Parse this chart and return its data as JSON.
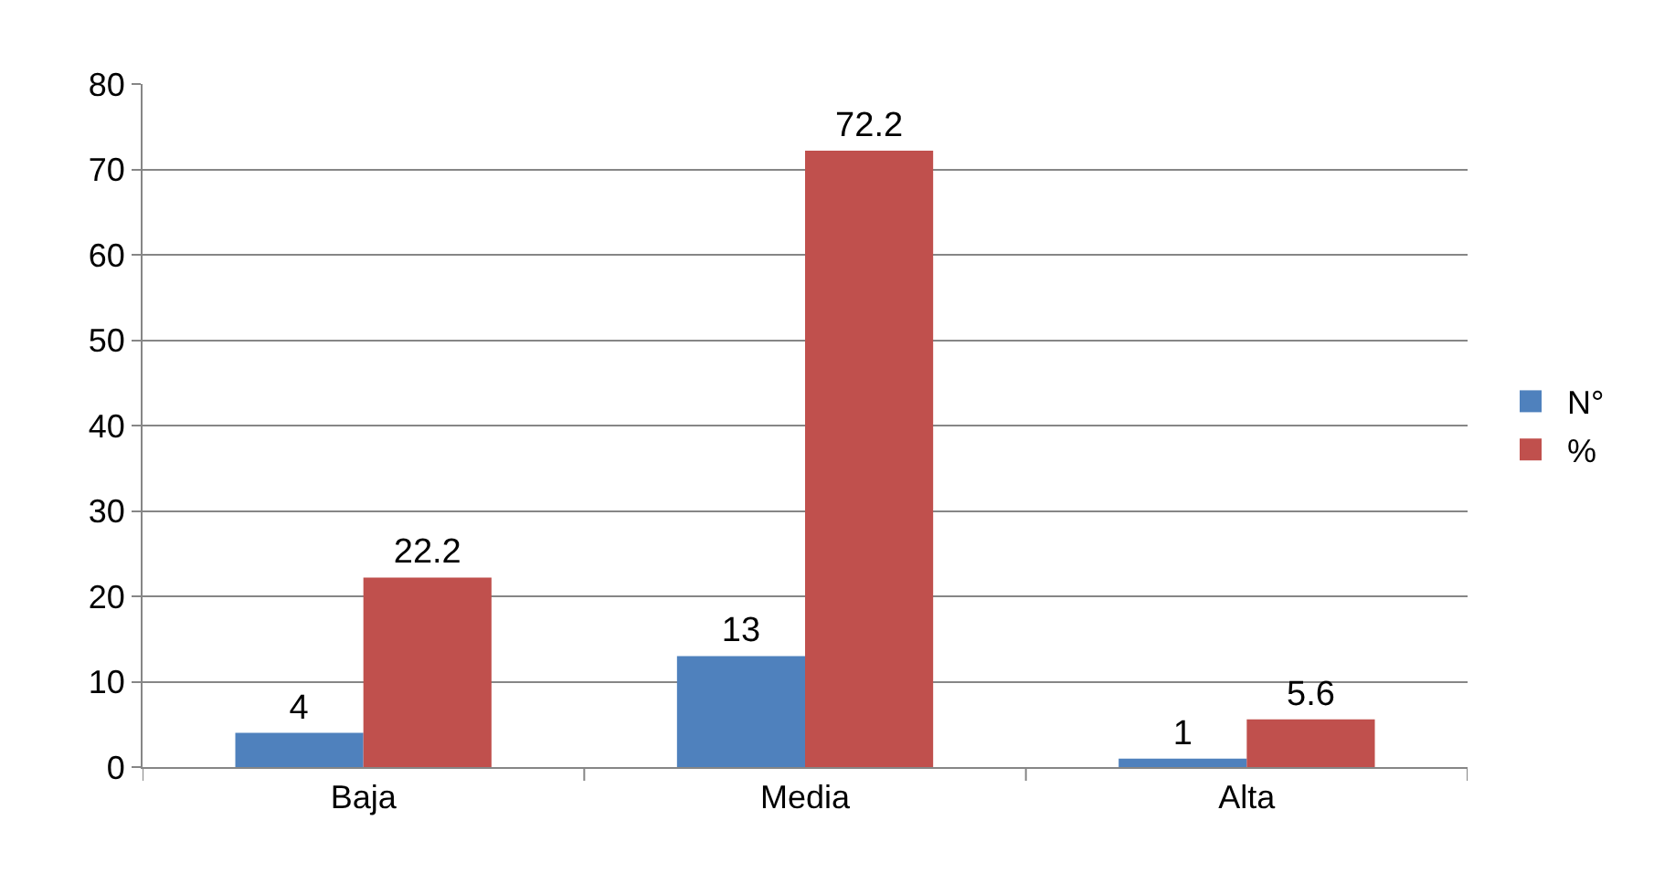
{
  "chart_data": {
    "type": "bar",
    "categories": [
      "Baja",
      "Media",
      "Alta"
    ],
    "series": [
      {
        "name": "N°",
        "color": "#4f81bd",
        "values": [
          4,
          13,
          1
        ]
      },
      {
        "name": "%",
        "color": "#c0504d",
        "values": [
          22.2,
          72.2,
          5.6
        ]
      }
    ],
    "ylim": [
      0,
      80
    ],
    "yticks": [
      0,
      10,
      20,
      30,
      40,
      50,
      60,
      70,
      80
    ],
    "grid": "y",
    "legend": "right",
    "data_labels": true
  }
}
